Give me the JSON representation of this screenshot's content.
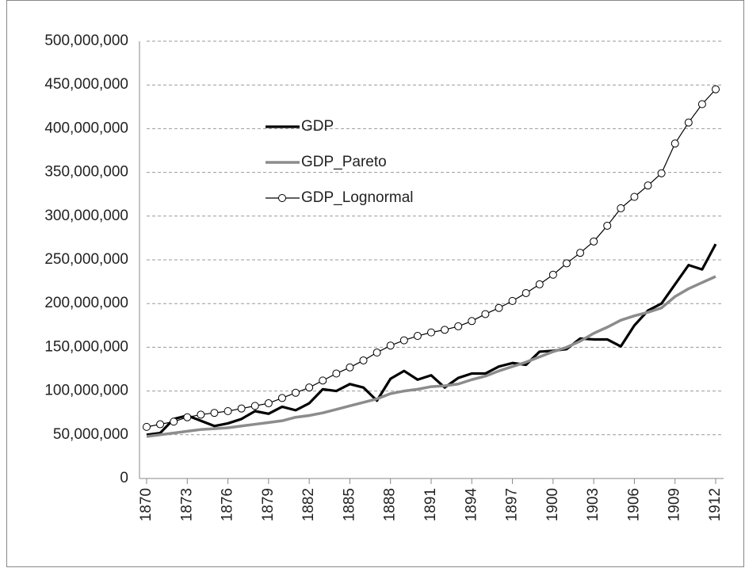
{
  "chart_data": {
    "type": "line",
    "x": [
      1870,
      1871,
      1872,
      1873,
      1874,
      1875,
      1876,
      1877,
      1878,
      1879,
      1880,
      1881,
      1882,
      1883,
      1884,
      1885,
      1886,
      1887,
      1888,
      1889,
      1890,
      1891,
      1892,
      1893,
      1894,
      1895,
      1896,
      1897,
      1898,
      1899,
      1900,
      1901,
      1902,
      1903,
      1904,
      1905,
      1906,
      1907,
      1908,
      1909,
      1910,
      1911,
      1912
    ],
    "xlim": [
      1870,
      1912
    ],
    "xticks": [
      1870,
      1873,
      1876,
      1879,
      1882,
      1885,
      1888,
      1891,
      1894,
      1897,
      1900,
      1903,
      1906,
      1909,
      1912
    ],
    "ylim": [
      0,
      500000000
    ],
    "yticks": [
      0,
      {
        "value": 50000000,
        "label": "50,000,000"
      },
      {
        "value": 100000000,
        "label": "100,000,000"
      },
      {
        "value": 150000000,
        "label": "150,000,000"
      },
      {
        "value": 200000000,
        "label": "200,000,000"
      },
      {
        "value": 250000000,
        "label": "250,000,000"
      },
      {
        "value": 300000000,
        "label": "300,000,000"
      },
      {
        "value": 350000000,
        "label": "350,000,000"
      },
      {
        "value": 400000000,
        "label": "400,000,000"
      },
      {
        "value": 450000000,
        "label": "450,000,000"
      },
      {
        "value": 500000000,
        "label": "500,000,000"
      }
    ],
    "grid": true,
    "legend": "upper left",
    "series": [
      {
        "name": "GDP",
        "color": "#000000",
        "values": [
          50000000,
          52000000,
          68000000,
          72000000,
          66000000,
          60000000,
          63000000,
          68000000,
          77000000,
          74000000,
          82000000,
          78000000,
          86000000,
          102000000,
          100000000,
          108000000,
          104000000,
          89000000,
          114000000,
          123000000,
          113000000,
          118000000,
          104000000,
          115000000,
          120000000,
          120000000,
          128000000,
          132000000,
          130000000,
          145000000,
          146000000,
          148000000,
          160000000,
          159000000,
          159000000,
          151000000,
          175000000,
          192000000,
          200000000,
          222000000,
          244000000,
          239000000,
          268000000
        ]
      },
      {
        "name": "GDP_Pareto",
        "color": "#8c8c8c",
        "values": [
          48000000,
          50000000,
          52000000,
          54000000,
          56000000,
          57000000,
          58000000,
          60000000,
          62000000,
          64000000,
          66000000,
          70000000,
          72000000,
          75000000,
          79000000,
          83000000,
          87000000,
          91000000,
          97000000,
          100000000,
          102000000,
          105000000,
          106000000,
          108000000,
          113000000,
          117000000,
          123000000,
          128000000,
          133000000,
          139000000,
          145000000,
          150000000,
          157000000,
          166000000,
          173000000,
          181000000,
          186000000,
          190000000,
          195000000,
          208000000,
          217000000,
          224000000,
          231000000
        ]
      },
      {
        "name": "GDP_Lognormal",
        "color": "#000000",
        "marker": "circle",
        "values": [
          59000000,
          62000000,
          65000000,
          70000000,
          73000000,
          75000000,
          77000000,
          80000000,
          83000000,
          86000000,
          92000000,
          98000000,
          104000000,
          112000000,
          120000000,
          127000000,
          135000000,
          144000000,
          152000000,
          158000000,
          163000000,
          167000000,
          170000000,
          174000000,
          180000000,
          188000000,
          195000000,
          203000000,
          212000000,
          222000000,
          233000000,
          246000000,
          258000000,
          271000000,
          289000000,
          309000000,
          322000000,
          335000000,
          349000000,
          383000000,
          407000000,
          428000000,
          445000000
        ]
      }
    ]
  }
}
